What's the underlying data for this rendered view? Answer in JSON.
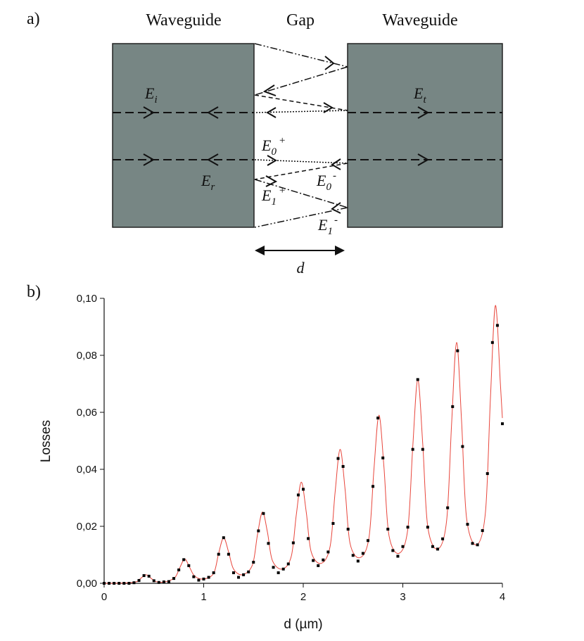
{
  "diagram": {
    "panel_label": "a)",
    "block_labels": [
      "Waveguide",
      "Gap",
      "Waveguide"
    ],
    "fields": [
      {
        "symbol": "E",
        "sub": "i"
      },
      {
        "symbol": "E",
        "sub": "t"
      },
      {
        "symbol": "E",
        "sub": "r"
      },
      {
        "symbol": "E",
        "sub": "0",
        "sup": "+"
      },
      {
        "symbol": "E",
        "sub": "0",
        "sup": "-"
      },
      {
        "symbol": "E",
        "sub": "1",
        "sup": "+"
      },
      {
        "symbol": "E",
        "sub": "1",
        "sup": "-"
      }
    ],
    "gap_label": "d"
  },
  "chart_data": {
    "type": "scatter",
    "panel_label": "b)",
    "x_label": "d (µm)",
    "y_label": "Losses",
    "xlim": [
      0,
      4
    ],
    "ylim": [
      0,
      0.1
    ],
    "xticks": [
      0,
      1,
      2,
      3,
      4
    ],
    "yticks": [
      {
        "value": 0,
        "label": "0,00"
      },
      {
        "value": 0.02,
        "label": "0,02"
      },
      {
        "value": 0.04,
        "label": "0,04"
      },
      {
        "value": 0.06,
        "label": "0,06"
      },
      {
        "value": 0.08,
        "label": "0,08"
      },
      {
        "value": 0.1,
        "label": "0,10"
      }
    ],
    "series": [
      {
        "type": "line",
        "color": "#e8463c",
        "x": [
          0,
          0.2,
          0.32,
          0.37,
          0.42,
          0.47,
          0.52,
          0.61,
          0.71,
          0.76,
          0.81,
          0.86,
          0.91,
          1.0,
          1.1,
          1.15,
          1.2,
          1.25,
          1.3,
          1.39,
          1.49,
          1.54,
          1.59,
          1.64,
          1.69,
          1.79,
          1.88,
          1.93,
          1.98,
          2.03,
          2.08,
          2.18,
          2.27,
          2.32,
          2.37,
          2.42,
          2.47,
          2.57,
          2.66,
          2.71,
          2.76,
          2.81,
          2.86,
          2.96,
          3.05,
          3.1,
          3.15,
          3.2,
          3.25,
          3.35,
          3.44,
          3.49,
          3.54,
          3.59,
          3.64,
          3.74,
          3.83,
          3.88,
          3.93,
          3.98,
          4.0
        ],
        "values": [
          0,
          0.0001,
          0.0005,
          0.0018,
          0.003,
          0.0018,
          0.0006,
          0.0005,
          0.002,
          0.0055,
          0.0085,
          0.0055,
          0.0025,
          0.0015,
          0.0035,
          0.0105,
          0.016,
          0.011,
          0.005,
          0.003,
          0.0065,
          0.017,
          0.025,
          0.018,
          0.008,
          0.005,
          0.0095,
          0.024,
          0.0355,
          0.025,
          0.011,
          0.007,
          0.013,
          0.032,
          0.047,
          0.033,
          0.014,
          0.009,
          0.016,
          0.04,
          0.059,
          0.041,
          0.017,
          0.0105,
          0.019,
          0.048,
          0.0715,
          0.049,
          0.02,
          0.012,
          0.022,
          0.056,
          0.0845,
          0.057,
          0.023,
          0.0135,
          0.025,
          0.065,
          0.0975,
          0.07,
          0.058
        ]
      },
      {
        "type": "scatter",
        "color": "#000000",
        "x": [
          0,
          0.05,
          0.1,
          0.15,
          0.2,
          0.25,
          0.3,
          0.35,
          0.4,
          0.45,
          0.5,
          0.55,
          0.6,
          0.65,
          0.7,
          0.75,
          0.8,
          0.85,
          0.9,
          0.95,
          1.0,
          1.05,
          1.1,
          1.15,
          1.2,
          1.25,
          1.3,
          1.35,
          1.4,
          1.45,
          1.5,
          1.55,
          1.6,
          1.65,
          1.7,
          1.75,
          1.8,
          1.85,
          1.9,
          1.95,
          2.0,
          2.05,
          2.1,
          2.15,
          2.2,
          2.25,
          2.3,
          2.35,
          2.4,
          2.45,
          2.5,
          2.55,
          2.6,
          2.65,
          2.7,
          2.75,
          2.8,
          2.85,
          2.9,
          2.95,
          3.0,
          3.05,
          3.1,
          3.15,
          3.2,
          3.25,
          3.3,
          3.35,
          3.4,
          3.45,
          3.5,
          3.55,
          3.6,
          3.65,
          3.7,
          3.75,
          3.8,
          3.85,
          3.9,
          3.95,
          4.0
        ],
        "values": [
          0,
          0,
          0,
          0,
          0,
          0,
          0.0002,
          0.001,
          0.0027,
          0.0025,
          0.0009,
          0.0003,
          0.0005,
          0.0006,
          0.0017,
          0.0047,
          0.0083,
          0.0062,
          0.0023,
          0.0011,
          0.0015,
          0.0021,
          0.0037,
          0.0102,
          0.016,
          0.0102,
          0.0037,
          0.0021,
          0.003,
          0.004,
          0.0074,
          0.0184,
          0.0245,
          0.014,
          0.0056,
          0.0037,
          0.005,
          0.0068,
          0.0142,
          0.031,
          0.033,
          0.0157,
          0.008,
          0.0062,
          0.0082,
          0.011,
          0.021,
          0.0438,
          0.041,
          0.019,
          0.0098,
          0.0078,
          0.0105,
          0.015,
          0.034,
          0.058,
          0.044,
          0.019,
          0.0115,
          0.0095,
          0.0129,
          0.0197,
          0.047,
          0.0715,
          0.047,
          0.0197,
          0.0129,
          0.012,
          0.0156,
          0.0265,
          0.062,
          0.0816,
          0.048,
          0.0207,
          0.014,
          0.0135,
          0.0185,
          0.0385,
          0.0845,
          0.0905,
          0.056
        ]
      }
    ]
  }
}
